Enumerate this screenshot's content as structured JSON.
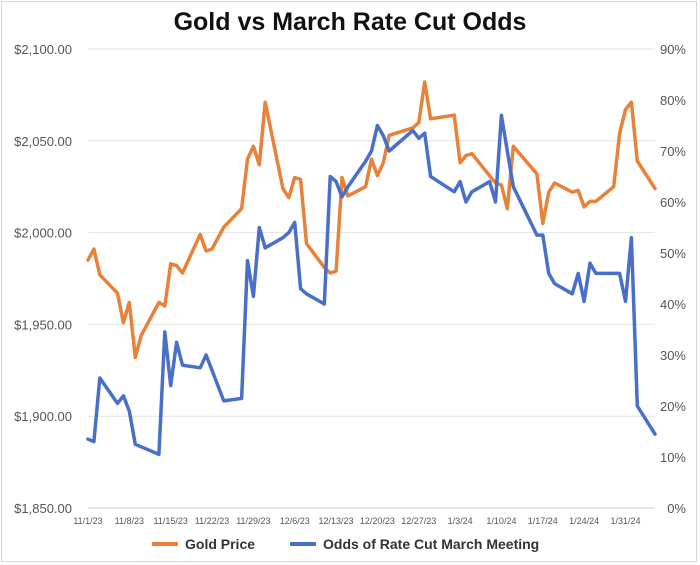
{
  "chart_data": {
    "type": "line",
    "title": "Gold vs March Rate Cut Odds",
    "x_tick_labels": [
      "11/1/23",
      "11/8/23",
      "11/15/23",
      "11/22/23",
      "11/29/23",
      "12/6/23",
      "12/13/23",
      "12/20/23",
      "12/27/23",
      "1/3/24",
      "1/10/24",
      "1/17/24",
      "1/24/24",
      "1/31/24"
    ],
    "y_left": {
      "ticks": [
        "$1,850.00",
        "$1,900.00",
        "$1,950.00",
        "$2,000.00",
        "$2,050.00",
        "$2,100.00"
      ],
      "ylim": [
        1850,
        2100
      ]
    },
    "y_right": {
      "ticks": [
        "0%",
        "10%",
        "20%",
        "30%",
        "40%",
        "50%",
        "60%",
        "70%",
        "80%",
        "90%"
      ],
      "ylim": [
        0,
        90
      ]
    },
    "grid": true,
    "legend_position": "bottom",
    "series": [
      {
        "name": "Gold Price",
        "axis": "left",
        "color": "#E8823A",
        "x": [
          "11/1/23",
          "11/2/23",
          "11/3/23",
          "11/6/23",
          "11/7/23",
          "11/8/23",
          "11/9/23",
          "11/10/23",
          "11/13/23",
          "11/14/23",
          "11/15/23",
          "11/16/23",
          "11/17/23",
          "11/20/23",
          "11/21/23",
          "11/22/23",
          "11/24/23",
          "11/27/23",
          "11/28/23",
          "11/29/23",
          "11/30/23",
          "12/1/23",
          "12/4/23",
          "12/5/23",
          "12/6/23",
          "12/7/23",
          "12/8/23",
          "12/11/23",
          "12/12/23",
          "12/13/23",
          "12/14/23",
          "12/15/23",
          "12/18/23",
          "12/19/23",
          "12/20/23",
          "12/21/23",
          "12/22/23",
          "12/26/23",
          "12/27/23",
          "12/28/23",
          "12/29/23",
          "1/2/24",
          "1/3/24",
          "1/4/24",
          "1/5/24",
          "1/8/24",
          "1/9/24",
          "1/10/24",
          "1/11/24",
          "1/12/24",
          "1/16/24",
          "1/17/24",
          "1/18/24",
          "1/19/24",
          "1/22/24",
          "1/23/24",
          "1/24/24",
          "1/25/24",
          "1/26/24",
          "1/29/24",
          "1/30/24",
          "1/31/24",
          "2/1/24",
          "2/2/24",
          "2/5/24"
        ],
        "values": [
          1985,
          1991,
          1977,
          1967,
          1951,
          1962,
          1932,
          1944,
          1962,
          1960,
          1983,
          1982,
          1978,
          1999,
          1990,
          1991,
          2003,
          2013,
          2040,
          2047,
          2037,
          2071,
          2024,
          2019,
          2030,
          2029,
          1994,
          1981,
          1978,
          1979,
          2030,
          2020,
          2025,
          2040,
          2031,
          2038,
          2053,
          2057,
          2060,
          2082,
          2062,
          2064,
          2038,
          2042,
          2043,
          2031,
          2027,
          2026,
          2013,
          2047,
          2032,
          2005,
          2022,
          2027,
          2022,
          2023,
          2014,
          2017,
          2017,
          2025,
          2054,
          2067,
          2071,
          2039,
          2024
        ]
      },
      {
        "name": "Odds of Rate Cut March Meeting",
        "axis": "right",
        "color": "#4A6FC9",
        "x": [
          "11/1/23",
          "11/2/23",
          "11/3/23",
          "11/6/23",
          "11/7/23",
          "11/8/23",
          "11/9/23",
          "11/10/23",
          "11/13/23",
          "11/14/23",
          "11/15/23",
          "11/16/23",
          "11/17/23",
          "11/20/23",
          "11/21/23",
          "11/22/23",
          "11/24/23",
          "11/27/23",
          "11/28/23",
          "11/29/23",
          "11/30/23",
          "12/1/23",
          "12/4/23",
          "12/5/23",
          "12/6/23",
          "12/7/23",
          "12/8/23",
          "12/11/23",
          "12/12/23",
          "12/13/23",
          "12/14/23",
          "12/15/23",
          "12/18/23",
          "12/19/23",
          "12/20/23",
          "12/21/23",
          "12/22/23",
          "12/26/23",
          "12/27/23",
          "12/28/23",
          "12/29/23",
          "1/2/24",
          "1/3/24",
          "1/4/24",
          "1/5/24",
          "1/8/24",
          "1/9/24",
          "1/10/24",
          "1/11/24",
          "1/12/24",
          "1/16/24",
          "1/17/24",
          "1/18/24",
          "1/19/24",
          "1/22/24",
          "1/23/24",
          "1/24/24",
          "1/25/24",
          "1/26/24",
          "1/29/24",
          "1/30/24",
          "1/31/24",
          "2/1/24",
          "2/2/24",
          "2/5/24"
        ],
        "values": [
          13.5,
          13,
          25.5,
          20.5,
          22,
          19,
          12.5,
          12,
          10.5,
          34.5,
          24,
          32.5,
          28,
          27.5,
          30,
          27,
          21,
          21.5,
          48.5,
          41.5,
          55,
          51,
          53,
          54,
          56,
          43,
          42,
          40,
          65,
          64,
          61,
          63,
          68,
          70,
          75,
          73,
          70,
          74,
          72.5,
          73.5,
          65,
          62,
          64,
          60,
          62,
          64,
          60,
          77,
          70,
          63,
          53.5,
          53.5,
          46,
          44,
          42,
          46,
          40.5,
          48,
          46,
          46,
          46,
          40.5,
          53,
          20,
          14.5
        ]
      }
    ]
  }
}
